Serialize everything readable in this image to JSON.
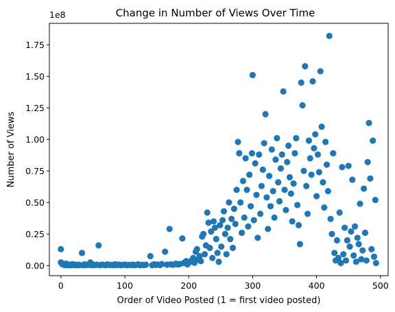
{
  "chart_data": {
    "type": "scatter",
    "title": "Change in Number of Views Over Time",
    "xlabel": "Order of Video Posted (1 = first video posted)",
    "ylabel": "Number of Views",
    "offset_text": "1e8",
    "xlim": [
      -18,
      512
    ],
    "ylim": [
      -8000000,
      192000000
    ],
    "xticks": [
      0,
      100,
      200,
      300,
      400,
      500
    ],
    "xtick_labels": [
      "0",
      "100",
      "200",
      "300",
      "400",
      "500"
    ],
    "yticks": [
      0,
      25000000,
      50000000,
      75000000,
      100000000,
      125000000,
      150000000,
      175000000
    ],
    "ytick_labels": [
      "0.00",
      "0.25",
      "0.50",
      "0.75",
      "1.00",
      "1.25",
      "1.50",
      "1.75"
    ],
    "grid": false,
    "marker_color": "#1f77b4",
    "series": [
      {
        "points": [
          [
            0,
            13000000
          ],
          [
            0,
            2500000
          ],
          [
            2,
            1200000
          ],
          [
            4,
            800000
          ],
          [
            6,
            400000
          ],
          [
            8,
            1500000
          ],
          [
            10,
            300000
          ],
          [
            12,
            600000
          ],
          [
            14,
            200000
          ],
          [
            16,
            900000
          ],
          [
            18,
            400000
          ],
          [
            20,
            1000000
          ],
          [
            22,
            300000
          ],
          [
            24,
            500000
          ],
          [
            26,
            200000
          ],
          [
            28,
            700000
          ],
          [
            30,
            400000
          ],
          [
            33,
            10000000
          ],
          [
            35,
            300000
          ],
          [
            37,
            1000000
          ],
          [
            40,
            400000
          ],
          [
            43,
            600000
          ],
          [
            46,
            2500000
          ],
          [
            48,
            300000
          ],
          [
            50,
            900000
          ],
          [
            53,
            400000
          ],
          [
            56,
            700000
          ],
          [
            59,
            16000000
          ],
          [
            61,
            300000
          ],
          [
            64,
            800000
          ],
          [
            67,
            500000
          ],
          [
            70,
            300000
          ],
          [
            73,
            900000
          ],
          [
            76,
            400000
          ],
          [
            79,
            600000
          ],
          [
            82,
            300000
          ],
          [
            85,
            1000000
          ],
          [
            88,
            400000
          ],
          [
            91,
            700000
          ],
          [
            94,
            300000
          ],
          [
            97,
            500000
          ],
          [
            100,
            800000
          ],
          [
            103,
            300000
          ],
          [
            106,
            600000
          ],
          [
            109,
            400000
          ],
          [
            112,
            700000
          ],
          [
            115,
            300000
          ],
          [
            118,
            500000
          ],
          [
            121,
            900000
          ],
          [
            124,
            300000
          ],
          [
            127,
            600000
          ],
          [
            130,
            400000
          ],
          [
            133,
            700000
          ],
          [
            140,
            7500000
          ],
          [
            143,
            300000
          ],
          [
            146,
            1000000
          ],
          [
            149,
            500000
          ],
          [
            152,
            800000
          ],
          [
            155,
            400000
          ],
          [
            158,
            1200000
          ],
          [
            163,
            11000000
          ],
          [
            166,
            700000
          ],
          [
            170,
            29000000
          ],
          [
            172,
            1000000
          ],
          [
            176,
            600000
          ],
          [
            180,
            1500000
          ],
          [
            183,
            800000
          ],
          [
            186,
            1200000
          ],
          [
            190,
            21500000
          ],
          [
            192,
            2000000
          ],
          [
            196,
            3500000
          ],
          [
            198,
            1000000
          ],
          [
            201,
            2500000
          ],
          [
            204,
            3800000
          ],
          [
            207,
            6000000
          ],
          [
            209,
            2200000
          ],
          [
            211,
            11000000
          ],
          [
            213,
            13000000
          ],
          [
            215,
            5000000
          ],
          [
            217,
            7500000
          ],
          [
            219,
            3500000
          ],
          [
            221,
            23000000
          ],
          [
            223,
            25000000
          ],
          [
            225,
            9000000
          ],
          [
            227,
            16000000
          ],
          [
            229,
            42000000
          ],
          [
            231,
            34000000
          ],
          [
            233,
            14000000
          ],
          [
            235,
            27000000
          ],
          [
            237,
            6000000
          ],
          [
            239,
            35000000
          ],
          [
            241,
            30000000
          ],
          [
            243,
            21000000
          ],
          [
            245,
            10000000
          ],
          [
            247,
            3000000
          ],
          [
            249,
            32000000
          ],
          [
            251,
            15000000
          ],
          [
            253,
            36000000
          ],
          [
            255,
            43000000
          ],
          [
            257,
            25000000
          ],
          [
            259,
            9000000
          ],
          [
            261,
            30000000
          ],
          [
            263,
            50000000
          ],
          [
            265,
            21000000
          ],
          [
            267,
            37000000
          ],
          [
            269,
            14000000
          ],
          [
            271,
            45000000
          ],
          [
            273,
            33000000
          ],
          [
            275,
            60000000
          ],
          [
            277,
            98000000
          ],
          [
            279,
            89000000
          ],
          [
            281,
            50000000
          ],
          [
            283,
            26000000
          ],
          [
            285,
            67000000
          ],
          [
            287,
            38000000
          ],
          [
            289,
            85000000
          ],
          [
            291,
            60000000
          ],
          [
            293,
            31000000
          ],
          [
            295,
            72000000
          ],
          [
            297,
            47000000
          ],
          [
            299,
            89000000
          ],
          [
            300,
            151000000
          ],
          [
            302,
            36000000
          ],
          [
            304,
            81000000
          ],
          [
            306,
            56000000
          ],
          [
            308,
            22000000
          ],
          [
            310,
            88000000
          ],
          [
            312,
            41000000
          ],
          [
            314,
            63000000
          ],
          [
            316,
            76000000
          ],
          [
            318,
            97000000
          ],
          [
            320,
            120000000
          ],
          [
            322,
            54000000
          ],
          [
            324,
            29000000
          ],
          [
            326,
            71000000
          ],
          [
            328,
            47000000
          ],
          [
            330,
            92000000
          ],
          [
            332,
            59000000
          ],
          [
            334,
            38000000
          ],
          [
            336,
            84000000
          ],
          [
            338,
            101000000
          ],
          [
            340,
            66000000
          ],
          [
            342,
            51000000
          ],
          [
            344,
            77000000
          ],
          [
            346,
            88000000
          ],
          [
            348,
            138000000
          ],
          [
            350,
            60000000
          ],
          [
            352,
            44000000
          ],
          [
            354,
            82000000
          ],
          [
            356,
            95000000
          ],
          [
            358,
            70000000
          ],
          [
            360,
            57000000
          ],
          [
            362,
            35000000
          ],
          [
            364,
            65000000
          ],
          [
            366,
            89000000
          ],
          [
            368,
            101000000
          ],
          [
            370,
            48000000
          ],
          [
            372,
            32000000
          ],
          [
            374,
            17000000
          ],
          [
            376,
            145000000
          ],
          [
            378,
            127000000
          ],
          [
            380,
            75000000
          ],
          [
            382,
            158000000
          ],
          [
            384,
            63000000
          ],
          [
            386,
            41000000
          ],
          [
            388,
            99000000
          ],
          [
            390,
            85000000
          ],
          [
            392,
            72000000
          ],
          [
            394,
            146000000
          ],
          [
            396,
            93000000
          ],
          [
            398,
            104000000
          ],
          [
            400,
            55000000
          ],
          [
            402,
            88000000
          ],
          [
            404,
            74000000
          ],
          [
            406,
            154000000
          ],
          [
            408,
            110000000
          ],
          [
            410,
            66000000
          ],
          [
            412,
            46000000
          ],
          [
            414,
            98000000
          ],
          [
            416,
            80000000
          ],
          [
            418,
            59000000
          ],
          [
            420,
            182000000
          ],
          [
            422,
            37000000
          ],
          [
            424,
            25000000
          ],
          [
            426,
            89000000
          ],
          [
            428,
            10000000
          ],
          [
            430,
            4000000
          ],
          [
            432,
            20000000
          ],
          [
            434,
            6000000
          ],
          [
            436,
            42000000
          ],
          [
            438,
            2000000
          ],
          [
            440,
            78000000
          ],
          [
            442,
            9000000
          ],
          [
            444,
            30000000
          ],
          [
            446,
            4000000
          ],
          [
            448,
            20000000
          ],
          [
            450,
            79000000
          ],
          [
            452,
            15000000
          ],
          [
            454,
            27000000
          ],
          [
            456,
            68000000
          ],
          [
            458,
            8000000
          ],
          [
            460,
            31000000
          ],
          [
            462,
            3000000
          ],
          [
            464,
            22000000
          ],
          [
            466,
            17000000
          ],
          [
            468,
            49000000
          ],
          [
            470,
            5000000
          ],
          [
            472,
            12000000
          ],
          [
            474,
            61000000
          ],
          [
            476,
            26000000
          ],
          [
            478,
            4000000
          ],
          [
            480,
            82000000
          ],
          [
            482,
            113000000
          ],
          [
            484,
            69000000
          ],
          [
            486,
            13000000
          ],
          [
            488,
            99000000
          ],
          [
            490,
            7000000
          ],
          [
            492,
            52000000
          ],
          [
            493,
            2000000
          ]
        ]
      }
    ]
  }
}
